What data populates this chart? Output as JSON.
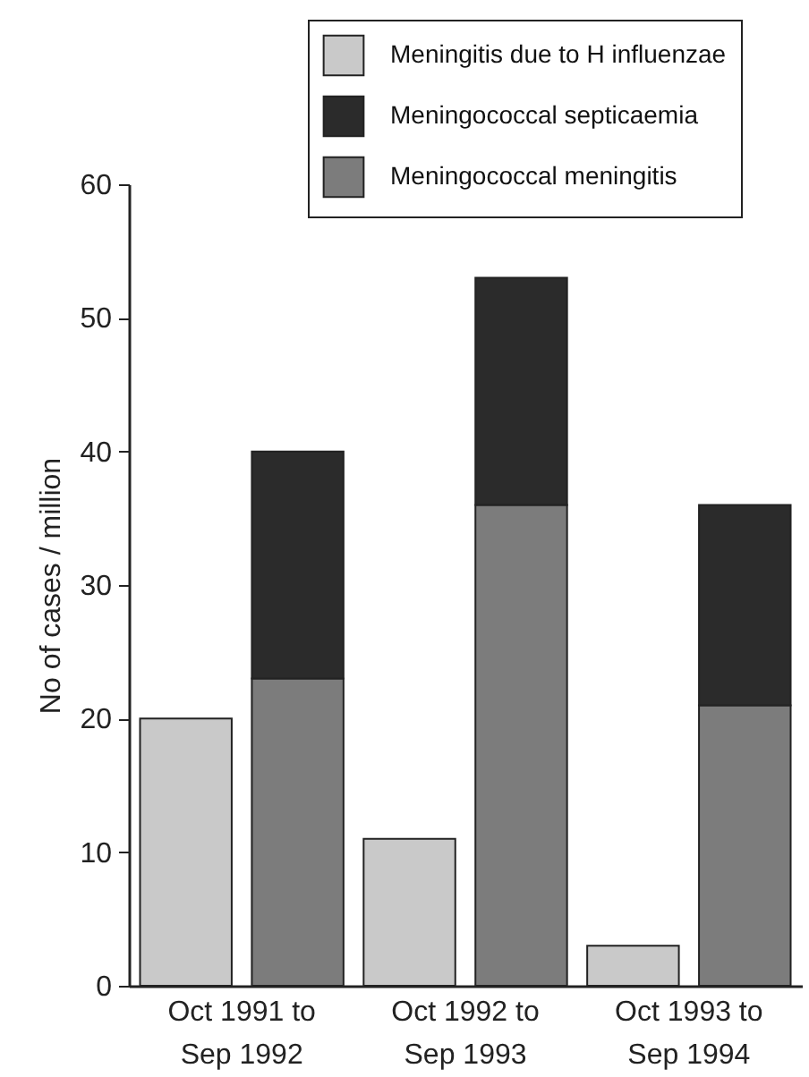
{
  "chart_data": {
    "type": "bar",
    "stacked": true,
    "ylabel": "No of cases / million",
    "categories": [
      "Oct 1991 to Sep 1992",
      null,
      "Oct 1992 to Sep 1993",
      null,
      "Oct 1993 to Sep 1994",
      null
    ],
    "series": [
      {
        "name": "Meningitis due to H influenzae",
        "color": "#c9c9c9",
        "values": [
          20,
          null,
          11,
          null,
          3,
          null
        ]
      },
      {
        "name": "Meningococcal meningitis",
        "color": "#7c7c7c",
        "values": [
          null,
          23,
          null,
          36,
          null,
          21
        ]
      },
      {
        "name": "Meningococcal septicaemia",
        "color": "#2b2b2b",
        "values": [
          null,
          17,
          null,
          17,
          null,
          15
        ]
      }
    ],
    "ylim": [
      0,
      60
    ],
    "yticks": [
      0,
      10,
      20,
      30,
      40,
      50,
      60
    ],
    "grid": false,
    "legend": "top right"
  }
}
